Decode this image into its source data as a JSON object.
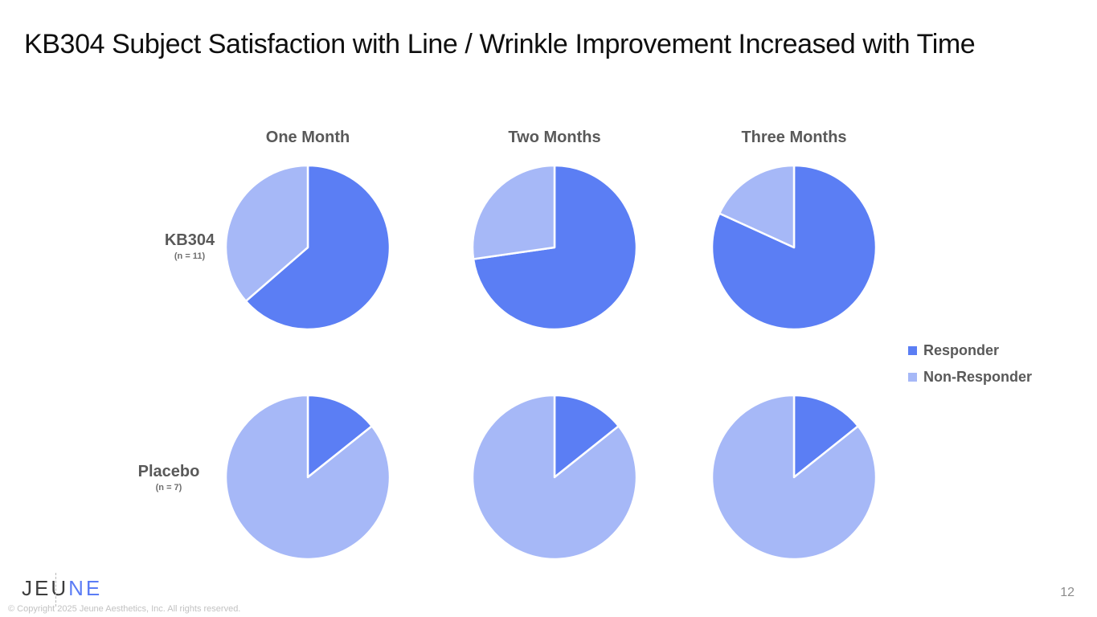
{
  "slide": {
    "title": "KB304 Subject Satisfaction with Line / Wrinkle Improvement Increased with Time",
    "page_number": "12",
    "copyright": "© Copyright 2025 Jeune Aesthetics, Inc. All rights reserved.",
    "logo": {
      "prefix": "JEU",
      "suffix": "NE"
    }
  },
  "chart_data": {
    "type": "pie",
    "title": "KB304 Subject Satisfaction with Line / Wrinkle Improvement Increased with Time",
    "layout": "2x3 grid of pies",
    "columns": [
      "One Month",
      "Two Months",
      "Three Months"
    ],
    "rows": [
      {
        "label": "KB304",
        "sublabel": "(n = 11)",
        "n": 11,
        "pies": [
          {
            "column": "One Month",
            "responder": 7,
            "non_responder": 4
          },
          {
            "column": "Two Months",
            "responder": 8,
            "non_responder": 3
          },
          {
            "column": "Three Months",
            "responder": 9,
            "non_responder": 2
          }
        ]
      },
      {
        "label": "Placebo",
        "sublabel": "(n = 7)",
        "n": 7,
        "pies": [
          {
            "column": "One Month",
            "responder": 1,
            "non_responder": 6
          },
          {
            "column": "Two Months",
            "responder": 1,
            "non_responder": 6
          },
          {
            "column": "Three Months",
            "responder": 1,
            "non_responder": 6
          }
        ]
      }
    ],
    "legend": [
      {
        "label": "Responder",
        "color": "#5B7EF4"
      },
      {
        "label": "Non-Responder",
        "color": "#A6B8F7"
      }
    ],
    "legend_position": "right",
    "start_angle_deg": 0,
    "direction": "clockwise",
    "slice_border_color": "#FFFFFF"
  },
  "colors": {
    "responder": "#5B7EF4",
    "non_responder": "#A6B8F7",
    "heading_text": "#595959",
    "title_text": "#0F0F0F",
    "logo_dark": "#3D3D3D",
    "logo_blue": "#5B7CF5",
    "copyright_text": "#C2C2C2",
    "page_number_text": "#8C8C8C"
  }
}
